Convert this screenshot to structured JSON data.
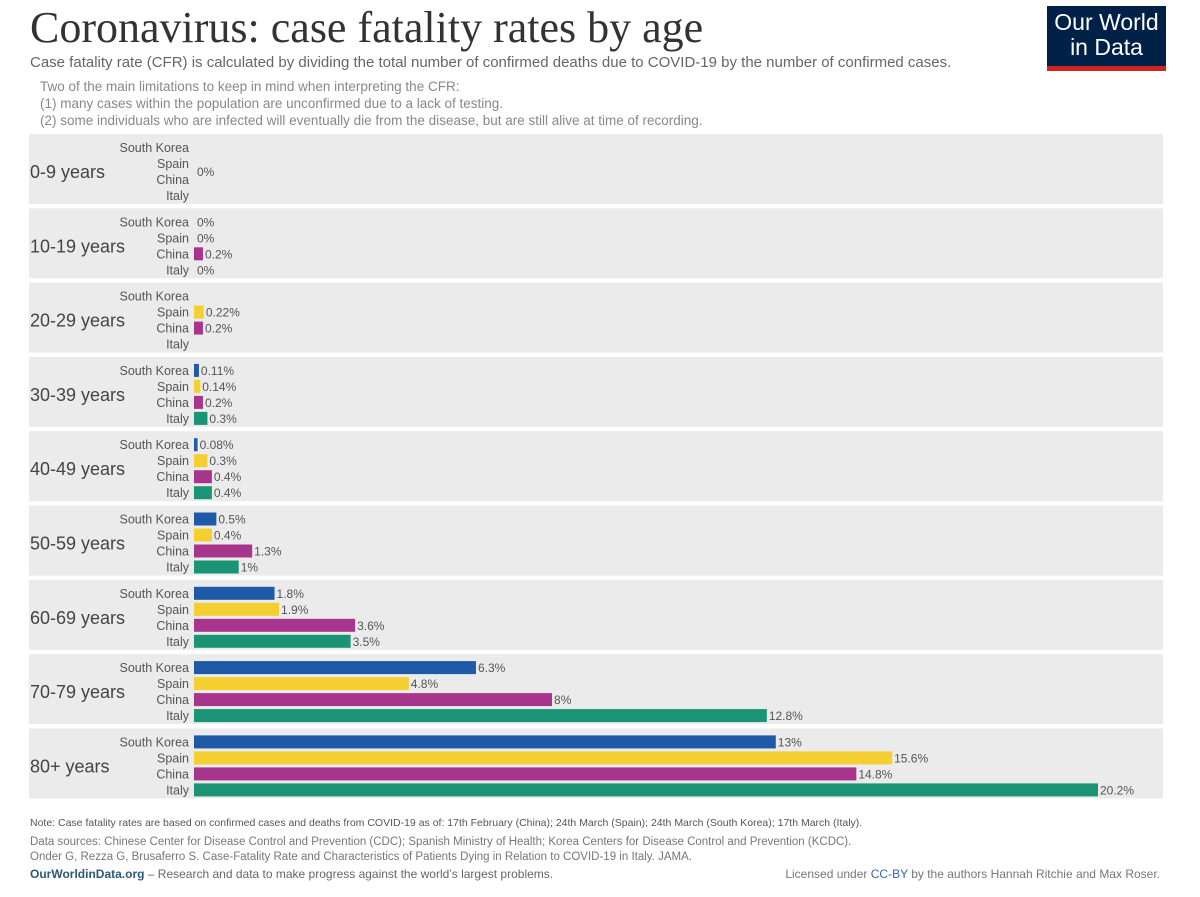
{
  "header": {
    "title": "Coronavirus: case fatality rates by age",
    "subtitle": "Case fatality rate (CFR) is calculated by dividing the total number of confirmed deaths due to COVID-19 by the number of confirmed cases.",
    "limits_line1": "Two of the main limitations to keep in mind when interpreting the CFR:",
    "limits_line2": "(1) many cases within the population are unconfirmed due to a lack of testing.",
    "limits_line3": "(2) some individuals who are infected will eventually die from the disease, but are still alive at time of recording."
  },
  "logo": {
    "line1": "Our World",
    "line2": "in Data",
    "bg": "#002147",
    "accent": "#ce261e"
  },
  "chart_data": {
    "type": "bar",
    "orientation": "horizontal",
    "countries": [
      "South Korea",
      "Spain",
      "China",
      "Italy"
    ],
    "colors": {
      "South Korea": "#1f5aa6",
      "Spain": "#f5cf32",
      "China": "#a8358c",
      "Italy": "#1b9476"
    },
    "value_unit": "%",
    "groups": [
      {
        "label": "0-9 years",
        "values": [
          null,
          null,
          null,
          null
        ],
        "labels": [
          "",
          "",
          "",
          ""
        ],
        "group_label": "0%"
      },
      {
        "label": "10-19 years",
        "values": [
          0,
          0,
          0.2,
          0
        ],
        "labels": [
          "0%",
          "0%",
          "0.2%",
          "0%"
        ]
      },
      {
        "label": "20-29 years",
        "values": [
          null,
          0.22,
          0.2,
          null
        ],
        "labels": [
          "",
          "0.22%",
          "0.2%",
          ""
        ]
      },
      {
        "label": "30-39 years",
        "values": [
          0.11,
          0.14,
          0.2,
          0.3
        ],
        "labels": [
          "0.11%",
          "0.14%",
          "0.2%",
          "0.3%"
        ]
      },
      {
        "label": "40-49 years",
        "values": [
          0.08,
          0.3,
          0.4,
          0.4
        ],
        "labels": [
          "0.08%",
          "0.3%",
          "0.4%",
          "0.4%"
        ]
      },
      {
        "label": "50-59 years",
        "values": [
          0.5,
          0.4,
          1.3,
          1
        ],
        "labels": [
          "0.5%",
          "0.4%",
          "1.3%",
          "1%"
        ]
      },
      {
        "label": "60-69 years",
        "values": [
          1.8,
          1.9,
          3.6,
          3.5
        ],
        "labels": [
          "1.8%",
          "1.9%",
          "3.6%",
          "3.5%"
        ]
      },
      {
        "label": "70-79 years",
        "values": [
          6.3,
          4.8,
          8,
          12.8
        ],
        "labels": [
          "6.3%",
          "4.8%",
          "8%",
          "12.8%"
        ]
      },
      {
        "label": "80+ years",
        "values": [
          13,
          15.6,
          14.8,
          20.2
        ],
        "labels": [
          "13%",
          "15.6%",
          "14.8%",
          "20.2%"
        ]
      }
    ],
    "xlim": [
      0,
      20.2
    ]
  },
  "footer": {
    "note": "Note: Case fatality rates are based on confirmed cases and deaths from COVID-19 as of: 17th February (China); 24th March (Spain); 24th March (South Korea); 17th March (Italy).",
    "sources_line1": "Data sources: Chinese Center for Disease Control and Prevention (CDC); Spanish Ministry of Health; Korea Centers for Disease Control and Prevention (KCDC).",
    "sources_line2": "Onder G, Rezza G, Brusaferro S. Case-Fatality Rate and Characteristics of Patients Dying in Relation to COVID-19 in Italy. JAMA.",
    "owid_link": "OurWorldinData.org",
    "tagline": " – Research and data to make progress against the world’s largest problems.",
    "license_prefix": "Licensed under ",
    "license_link": "CC-BY",
    "license_suffix": " by the authors Hannah Ritchie and Max Roser."
  }
}
